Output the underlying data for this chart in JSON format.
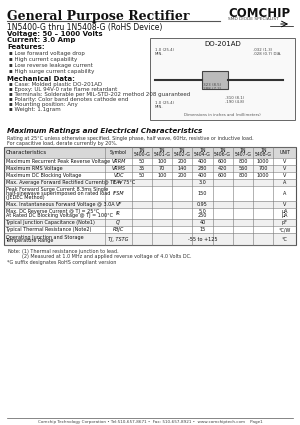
{
  "title": "General Purpose Rectifier",
  "subtitle": "1N5400-G thru 1N5408-G (RoHS Device)",
  "voltage": "Voltage: 50 – 1000 Volts",
  "current": "Current: 3.0 Amp",
  "features_title": "Features:",
  "features": [
    "Low forward voltage drop",
    "High current capability",
    "Low reverse leakage current",
    "High surge current capability"
  ],
  "mech_title": "Mechanical Data:",
  "mech": [
    "Case: Molded plastic DO-201AD",
    "Epoxy: UL 94V-0 rate flame retardant",
    "Terminals: Solderable per MIL-STD-202 method 208 guaranteed",
    "Polarity: Color band denotes cathode end",
    "Mounting position: Any",
    "Weight: 1.1gram"
  ],
  "ratings_title": "Maximum Ratings and Electrical Characteristics",
  "ratings_note1": "Rating at 25°C unless otherwise specified. Single phase, half wave, 60Hz, resistive or inductive load.",
  "ratings_note2": "For capacitive load, derate currently by 20%.",
  "table_col_names": [
    "Characteristics",
    "Symbol",
    "1N\n5400-G",
    "1N\n5401-G",
    "1N\n5402-G",
    "1N\n5404-G",
    "1N\n5406-G",
    "1N\n5407-G",
    "1N\n5408-G",
    "UNIT"
  ],
  "table_rows": [
    {
      "char": "Maximum Recurrent Peak Reverse Voltage",
      "sym": "VRRM",
      "vals": [
        "50",
        "100",
        "200",
        "400",
        "600",
        "800",
        "1000"
      ],
      "unit": "V",
      "span": false
    },
    {
      "char": "Maximum RMS Voltage",
      "sym": "VRMS",
      "vals": [
        "35",
        "70",
        "140",
        "280",
        "420",
        "560",
        "700"
      ],
      "unit": "V",
      "span": false
    },
    {
      "char": "Maximum DC Blocking Voltage",
      "sym": "VDC",
      "vals": [
        "50",
        "100",
        "200",
        "400",
        "600",
        "800",
        "1000"
      ],
      "unit": "V",
      "span": false
    },
    {
      "char": "Max. Average Forward Rectified Current@ TL = 75°C",
      "sym": "IFAV",
      "vals": [
        "3.0"
      ],
      "unit": "A",
      "span": true
    },
    {
      "char": "Peak Forward Surge Current 8.3ms Single\nhalf-sinewave superimposed on rated load\n(JEDEC Method)",
      "sym": "IFSM",
      "vals": [
        "150"
      ],
      "unit": "A",
      "span": true
    },
    {
      "char": "Max. Instantaneous Forward Voltage @ 3.0A",
      "sym": "VF",
      "vals": [
        "0.95"
      ],
      "unit": "V",
      "span": true
    },
    {
      "char": "Max. DC Reverse Current @ TJ = 25°C\nAt Rated DC Blocking Voltage @ TJ = 100°C",
      "sym": "IR",
      "vals": [
        "5.0",
        "250"
      ],
      "unit": "μA\nμA",
      "span": true
    },
    {
      "char": "Typical Junction Capacitance (Note1)",
      "sym": "CJ",
      "vals": [
        "40"
      ],
      "unit": "pF",
      "span": true
    },
    {
      "char": "Typical Thermal Resistance (Note2)",
      "sym": "RθJC",
      "vals": [
        "15"
      ],
      "unit": "°C/W",
      "span": true
    },
    {
      "char": "Operating Junction and Storage\nTemperature Range",
      "sym": "TJ, TSTG",
      "vals": [
        "-55 to +125"
      ],
      "unit": "°C",
      "span": true
    }
  ],
  "notes_label": "Note:",
  "notes": [
    "(1) Thermal resistance junction to lead.",
    "(2) Measured at 1.0 MHz and applied reverse voltage of 4.0 Volts DC."
  ],
  "rohs_note": "*G suffix designates RoHS compliant version",
  "footer": "Comchip Technology Corporation • Tel:510-657-8671 •  Fax: 510-657-8921 •  www.comchiptech.com    Page1",
  "logo_text": "COMCHIP",
  "logo_sub": "SMD DIODE SPECIALIST",
  "do201ad_label": "DO-201AD",
  "dim_note": "Dimensions in inches and (millimeters)",
  "bg_color": "#ffffff",
  "line_color": "#888888",
  "title_color": "#111111",
  "body_color": "#222222",
  "ratings_color": "#111111",
  "table_bg_alt": "#f0f0f0",
  "table_header_bg": "#d8d8d8"
}
